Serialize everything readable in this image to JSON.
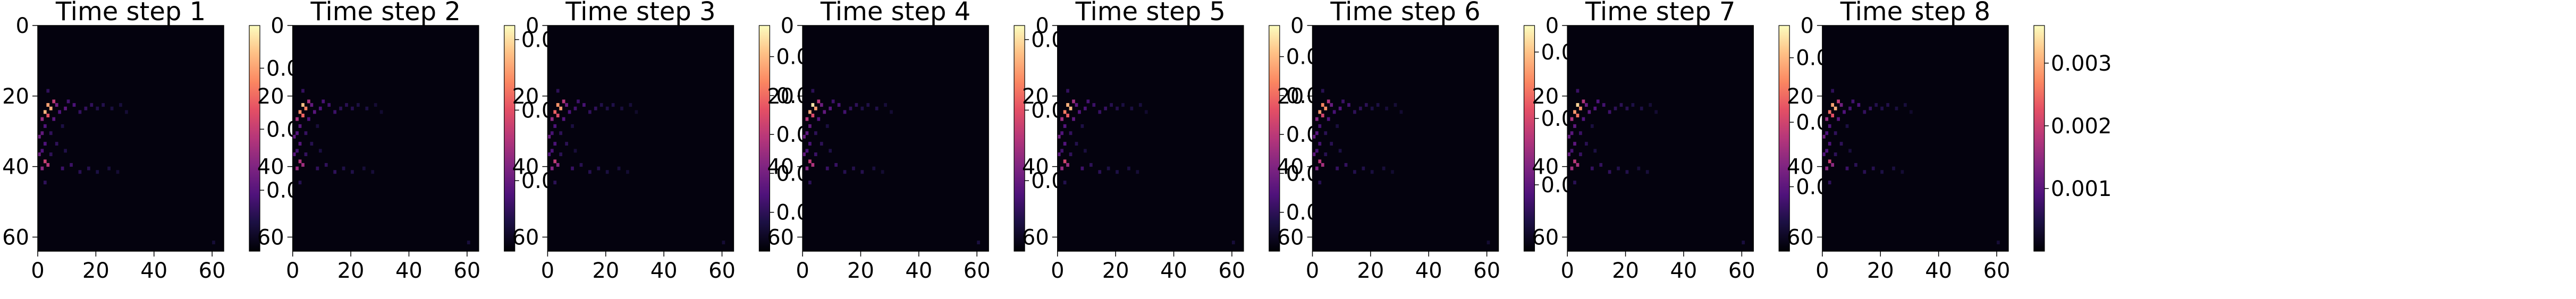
{
  "chart_data": {
    "type": "heatmap",
    "colormap": "magma",
    "grid": false,
    "panels": [
      {
        "title": "Time step 1",
        "x_ticks": [
          "0",
          "20",
          "40",
          "60"
        ],
        "y_ticks": [
          "0",
          "20",
          "40",
          "60"
        ],
        "xlim": [
          0,
          64
        ],
        "ylim": [
          64,
          0
        ],
        "colorbar_ticks": [
          "0.003",
          "0.002",
          "0.001"
        ],
        "colorbar_tick_values": [
          0.003,
          0.002,
          0.001
        ],
        "colorbar_range": [
          0,
          0.0037
        ]
      },
      {
        "title": "Time step 2",
        "x_ticks": [
          "0",
          "20",
          "40",
          "60"
        ],
        "y_ticks": [
          "0",
          "20",
          "40",
          "60"
        ],
        "xlim": [
          0,
          64
        ],
        "ylim": [
          64,
          0
        ],
        "colorbar_ticks": [
          "0.003",
          "0.002",
          "0.001"
        ],
        "colorbar_tick_values": [
          0.003,
          0.002,
          0.001
        ],
        "colorbar_range": [
          0,
          0.0032
        ]
      },
      {
        "title": "Time step 3",
        "x_ticks": [
          "0",
          "20",
          "40",
          "60"
        ],
        "y_ticks": [
          "0",
          "20",
          "40",
          "60"
        ],
        "xlim": [
          0,
          64
        ],
        "ylim": [
          64,
          0
        ],
        "colorbar_ticks": [
          "0.002",
          "0.002",
          "0.001",
          "0.001",
          "0.000"
        ],
        "colorbar_tick_values": [
          0.0025,
          0.002,
          0.0015,
          0.001,
          0.0005
        ],
        "colorbar_range": [
          0,
          0.0029
        ]
      },
      {
        "title": "Time step 4",
        "x_ticks": [
          "0",
          "20",
          "40",
          "60"
        ],
        "y_ticks": [
          "0",
          "20",
          "40",
          "60"
        ],
        "xlim": [
          0,
          64
        ],
        "ylim": [
          64,
          0
        ],
        "colorbar_ticks": [
          "0.003",
          "0.002",
          "0.001"
        ],
        "colorbar_tick_values": [
          0.003,
          0.002,
          0.001
        ],
        "colorbar_range": [
          0,
          0.0032
        ]
      },
      {
        "title": "Time step 5",
        "x_ticks": [
          "0",
          "20",
          "40",
          "60"
        ],
        "y_ticks": [
          "0",
          "20",
          "40",
          "60"
        ],
        "xlim": [
          0,
          64
        ],
        "ylim": [
          64,
          0
        ],
        "colorbar_ticks": [
          "0.002",
          "0.002",
          "0.001",
          "0.001",
          "0.000"
        ],
        "colorbar_tick_values": [
          0.0025,
          0.002,
          0.0015,
          0.001,
          0.0005
        ],
        "colorbar_range": [
          0,
          0.0029
        ]
      },
      {
        "title": "Time step 6",
        "x_ticks": [
          "0",
          "20",
          "40",
          "60"
        ],
        "y_ticks": [
          "0",
          "20",
          "40",
          "60"
        ],
        "xlim": [
          0,
          64
        ],
        "ylim": [
          64,
          0
        ],
        "colorbar_ticks": [
          "0.003",
          "0.002",
          "0.001"
        ],
        "colorbar_tick_values": [
          0.003,
          0.002,
          0.001
        ],
        "colorbar_range": [
          0,
          0.0034
        ]
      },
      {
        "title": "Time step 7",
        "x_ticks": [
          "0",
          "20",
          "40",
          "60"
        ],
        "y_ticks": [
          "0",
          "20",
          "40",
          "60"
        ],
        "xlim": [
          0,
          64
        ],
        "ylim": [
          64,
          0
        ],
        "colorbar_ticks": [
          "0.003",
          "0.002",
          "0.001"
        ],
        "colorbar_tick_values": [
          0.003,
          0.002,
          0.001
        ],
        "colorbar_range": [
          0,
          0.0035
        ]
      },
      {
        "title": "Time step 8",
        "x_ticks": [
          "0",
          "20",
          "40",
          "60"
        ],
        "y_ticks": [
          "0",
          "20",
          "40",
          "60"
        ],
        "xlim": [
          0,
          64
        ],
        "ylim": [
          64,
          0
        ],
        "colorbar_ticks": [
          "0.003",
          "0.002",
          "0.001"
        ],
        "colorbar_tick_values": [
          0.003,
          0.002,
          0.001
        ],
        "colorbar_range": [
          0,
          0.0036
        ]
      }
    ],
    "hotspots": [
      {
        "x": 3,
        "y": 22,
        "value": 0.95
      },
      {
        "x": 4,
        "y": 23,
        "value": 0.9
      },
      {
        "x": 2,
        "y": 24,
        "value": 0.85
      },
      {
        "x": 3,
        "y": 25,
        "value": 0.7
      },
      {
        "x": 5,
        "y": 21,
        "value": 0.55
      },
      {
        "x": 1,
        "y": 26,
        "value": 0.5
      },
      {
        "x": 2,
        "y": 38,
        "value": 0.6
      },
      {
        "x": 3,
        "y": 39,
        "value": 0.5
      },
      {
        "x": 1,
        "y": 40,
        "value": 0.45
      },
      {
        "x": 6,
        "y": 22,
        "value": 0.35
      },
      {
        "x": 7,
        "y": 24,
        "value": 0.3
      },
      {
        "x": 5,
        "y": 26,
        "value": 0.3
      },
      {
        "x": 9,
        "y": 23,
        "value": 0.28
      },
      {
        "x": 10,
        "y": 21,
        "value": 0.25
      },
      {
        "x": 12,
        "y": 22,
        "value": 0.25
      },
      {
        "x": 14,
        "y": 24,
        "value": 0.22
      },
      {
        "x": 16,
        "y": 23,
        "value": 0.2
      },
      {
        "x": 18,
        "y": 22,
        "value": 0.18
      },
      {
        "x": 20,
        "y": 23,
        "value": 0.16
      },
      {
        "x": 22,
        "y": 22,
        "value": 0.15
      },
      {
        "x": 25,
        "y": 23,
        "value": 0.14
      },
      {
        "x": 8,
        "y": 40,
        "value": 0.22
      },
      {
        "x": 11,
        "y": 39,
        "value": 0.2
      },
      {
        "x": 14,
        "y": 41,
        "value": 0.18
      },
      {
        "x": 17,
        "y": 40,
        "value": 0.16
      },
      {
        "x": 20,
        "y": 41,
        "value": 0.15
      },
      {
        "x": 24,
        "y": 40,
        "value": 0.13
      },
      {
        "x": 1,
        "y": 30,
        "value": 0.3
      },
      {
        "x": 2,
        "y": 33,
        "value": 0.28
      },
      {
        "x": 1,
        "y": 35,
        "value": 0.26
      },
      {
        "x": 2,
        "y": 28,
        "value": 0.3
      },
      {
        "x": 0,
        "y": 31,
        "value": 0.35
      },
      {
        "x": 0,
        "y": 36,
        "value": 0.32
      },
      {
        "x": 4,
        "y": 30,
        "value": 0.2
      },
      {
        "x": 6,
        "y": 33,
        "value": 0.18
      },
      {
        "x": 4,
        "y": 36,
        "value": 0.2
      },
      {
        "x": 8,
        "y": 28,
        "value": 0.14
      },
      {
        "x": 9,
        "y": 35,
        "value": 0.14
      },
      {
        "x": 3,
        "y": 18,
        "value": 0.2
      },
      {
        "x": 2,
        "y": 44,
        "value": 0.18
      },
      {
        "x": 60,
        "y": 61,
        "value": 0.12
      },
      {
        "x": 28,
        "y": 22,
        "value": 0.12
      },
      {
        "x": 30,
        "y": 24,
        "value": 0.1
      },
      {
        "x": 27,
        "y": 41,
        "value": 0.11
      }
    ]
  }
}
